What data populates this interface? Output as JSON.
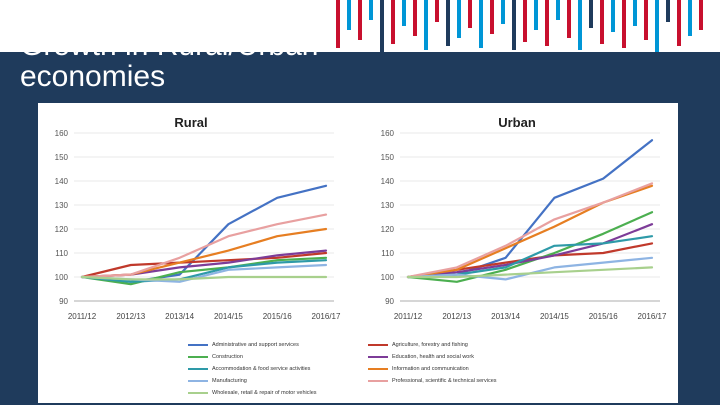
{
  "slide": {
    "title": "Growth in Rural/Urban economies"
  },
  "chart_data": [
    {
      "type": "line",
      "title": "Rural",
      "categories": [
        "2011/12",
        "2012/13",
        "2013/14",
        "2014/15",
        "2015/16",
        "2016/17"
      ],
      "ylim": [
        90,
        160
      ],
      "yticks": [
        90,
        100,
        110,
        120,
        130,
        140,
        150,
        160
      ],
      "series": [
        {
          "name": "Administrative and support services",
          "color": "#4472c4",
          "values": [
            100,
            98,
            101,
            122,
            133,
            138
          ]
        },
        {
          "name": "Agriculture, forestry and fishing",
          "color": "#c0392b",
          "values": [
            100,
            105,
            106,
            107,
            108,
            110
          ]
        },
        {
          "name": "Construction",
          "color": "#4caf50",
          "values": [
            100,
            97,
            102,
            104,
            107,
            108
          ]
        },
        {
          "name": "Education, health and social work",
          "color": "#7d3c98",
          "values": [
            100,
            101,
            104,
            106,
            109,
            111
          ]
        },
        {
          "name": "Accommodation & food service activities",
          "color": "#2e9aa8",
          "values": [
            100,
            98,
            99,
            104,
            106,
            107
          ]
        },
        {
          "name": "Information and communication",
          "color": "#e67e22",
          "values": [
            100,
            101,
            106,
            111,
            117,
            120
          ]
        },
        {
          "name": "Manufacturing",
          "color": "#8eb4e3",
          "values": [
            100,
            99,
            98,
            103,
            104,
            105
          ]
        },
        {
          "name": "Professional, scientific & technical services",
          "color": "#e8a0a0",
          "values": [
            100,
            101,
            108,
            117,
            122,
            126
          ]
        },
        {
          "name": "Wholesale, retail & repair of motor vehicles",
          "color": "#a8d08d",
          "values": [
            100,
            99,
            99,
            100,
            100,
            100
          ]
        }
      ]
    },
    {
      "type": "line",
      "title": "Urban",
      "categories": [
        "2011/12",
        "2012/13",
        "2013/14",
        "2014/15",
        "2015/16",
        "2016/17"
      ],
      "ylim": [
        90,
        160
      ],
      "yticks": [
        90,
        100,
        110,
        120,
        130,
        140,
        150,
        160
      ],
      "series": [
        {
          "name": "Administrative and support services",
          "color": "#4472c4",
          "values": [
            100,
            101,
            108,
            133,
            141,
            157
          ]
        },
        {
          "name": "Agriculture, forestry and fishing",
          "color": "#c0392b",
          "values": [
            100,
            103,
            106,
            109,
            110,
            114
          ]
        },
        {
          "name": "Construction",
          "color": "#4caf50",
          "values": [
            100,
            98,
            103,
            110,
            118,
            127
          ]
        },
        {
          "name": "Education, health and social work",
          "color": "#7d3c98",
          "values": [
            100,
            102,
            105,
            109,
            114,
            122
          ]
        },
        {
          "name": "Accommodation & food service activities",
          "color": "#2e9aa8",
          "values": [
            100,
            101,
            104,
            113,
            114,
            117
          ]
        },
        {
          "name": "Information and communication",
          "color": "#e67e22",
          "values": [
            100,
            103,
            112,
            121,
            131,
            138
          ]
        },
        {
          "name": "Manufacturing",
          "color": "#8eb4e3",
          "values": [
            100,
            101,
            99,
            104,
            106,
            108
          ]
        },
        {
          "name": "Professional, scientific & technical services",
          "color": "#e8a0a0",
          "values": [
            100,
            104,
            113,
            124,
            131,
            139
          ]
        },
        {
          "name": "Wholesale, retail & repair of motor vehicles",
          "color": "#a8d08d",
          "values": [
            100,
            100,
            101,
            102,
            103,
            104
          ]
        }
      ]
    }
  ],
  "legend": {
    "items": [
      {
        "label": "Administrative and support services",
        "color": "#4472c4"
      },
      {
        "label": "Agriculture, forestry and fishing",
        "color": "#c0392b"
      },
      {
        "label": "Construction",
        "color": "#4caf50"
      },
      {
        "label": "Education, health and social work",
        "color": "#7d3c98"
      },
      {
        "label": "Accommodation & food service activities",
        "color": "#2e9aa8"
      },
      {
        "label": "Information and communication",
        "color": "#e67e22"
      },
      {
        "label": "Manufacturing",
        "color": "#8eb4e3"
      },
      {
        "label": "Professional, scientific & technical services",
        "color": "#e8a0a0"
      },
      {
        "label": "Wholesale, retail & repair of motor vehicles",
        "color": "#a8d08d"
      }
    ]
  },
  "brand": {
    "bar_colors": [
      "#c8102e",
      "#0096d6",
      "#1f3b5c"
    ]
  }
}
